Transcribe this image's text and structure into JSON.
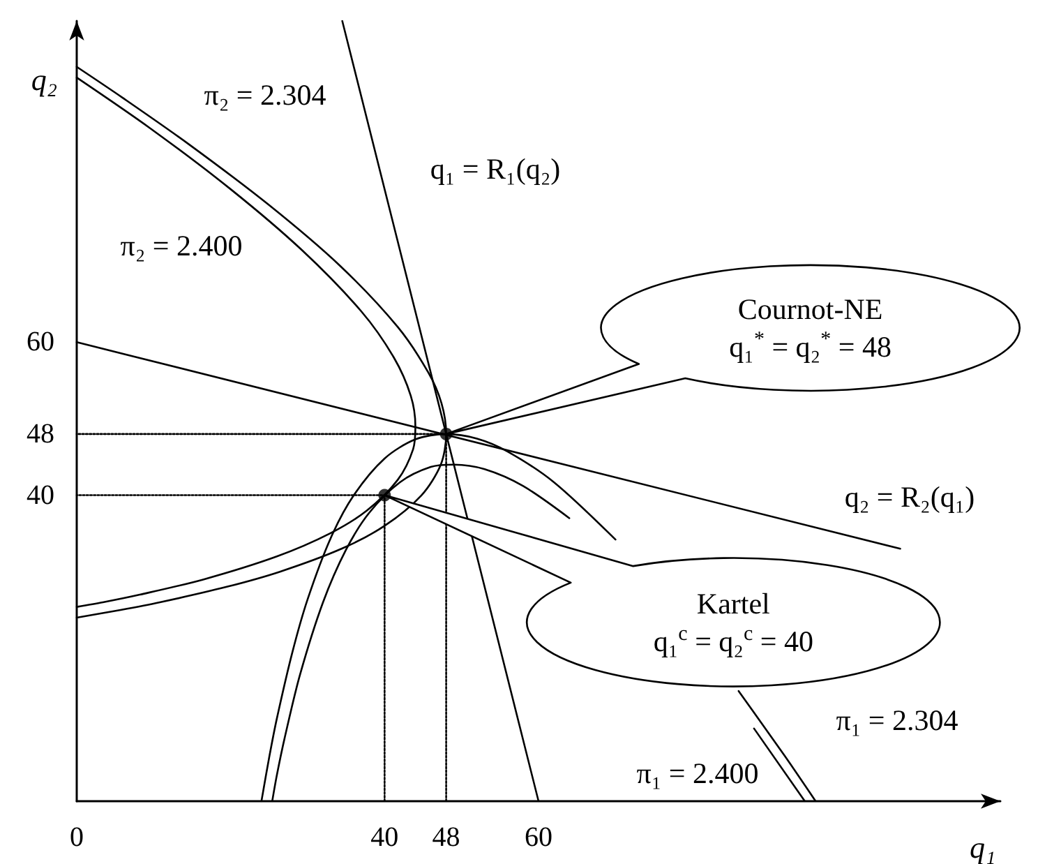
{
  "chart_data": {
    "type": "line",
    "xlabel": "q₁",
    "ylabel": "q₂",
    "xlim": [
      0,
      120
    ],
    "ylim": [
      0,
      102
    ],
    "xticks": [
      0,
      40,
      48,
      60
    ],
    "yticks": [
      40,
      48,
      60
    ],
    "series": [
      {
        "color": "#000000",
        "marker": "none",
        "line_style": "solid",
        "x": [
          0,
          5.7,
          10.8,
          19.4,
          26.4,
          34.4,
          40,
          44.8,
          47.3,
          48,
          47.4,
          45.7,
          41.7,
          34.2,
          24.9,
          14.4,
          5.9,
          0
        ],
        "values": [
          24,
          25,
          26,
          28,
          30,
          33,
          36,
          40,
          44,
          48,
          52,
          56,
          62,
          70,
          78,
          86,
          92,
          96
        ]
      },
      {
        "color": "#000000",
        "marker": "none",
        "line_style": "solid",
        "x": [
          0,
          3.4,
          8.2,
          16.5,
          26,
          32.9,
          37.7,
          41.7,
          43.7,
          44,
          43.4,
          41.2,
          37,
          29.3,
          20,
          9.5,
          0
        ],
        "values": [
          25.4,
          26,
          27,
          29,
          32,
          35,
          38,
          42,
          46,
          49,
          53,
          58,
          64,
          72,
          80,
          88,
          94.6
        ]
      },
      {
        "color": "#000000",
        "marker": "none",
        "line_style": "solid",
        "x": [
          24,
          25,
          26,
          28,
          30,
          33,
          36,
          40,
          44,
          48,
          52,
          56,
          62,
          70,
          78,
          86,
          92,
          96
        ],
        "values": [
          0,
          5.7,
          10.8,
          19.4,
          26.4,
          34.4,
          40,
          44.8,
          47.3,
          48,
          47.4,
          45.7,
          41.7,
          34.2,
          null,
          14.4,
          5.9,
          0
        ]
      },
      {
        "color": "#000000",
        "marker": "none",
        "line_style": "solid",
        "x": [
          25.4,
          26,
          27,
          29,
          32,
          35,
          38,
          42,
          46,
          49,
          53,
          58,
          64,
          72,
          80,
          88,
          94.6
        ],
        "values": [
          0,
          3.4,
          8.2,
          16.5,
          26,
          32.9,
          37.7,
          41.7,
          43.7,
          44,
          43.4,
          41.2,
          37,
          null,
          null,
          9.5,
          0
        ]
      },
      {
        "color": "#000000",
        "marker": "none",
        "line_style": "solid",
        "x": [
          60,
          34.5
        ],
        "values": [
          0,
          102
        ]
      },
      {
        "color": "#000000",
        "marker": "none",
        "line_style": "solid",
        "x": [
          0,
          107
        ],
        "values": [
          60,
          33
        ]
      },
      {
        "color": "#000000",
        "marker": "none",
        "line_style": "dotted",
        "x": [
          48,
          48,
          0
        ],
        "values": [
          0,
          48,
          48
        ]
      },
      {
        "color": "#000000",
        "marker": "none",
        "line_style": "dotted",
        "x": [
          40,
          40,
          0
        ],
        "values": [
          0,
          40,
          40
        ]
      },
      {
        "type": "scatter",
        "color": "#000000",
        "marker": "circle",
        "x": [
          48,
          40
        ],
        "values": [
          48,
          40
        ]
      }
    ],
    "annotations": [
      "π₂ = 2.304",
      "q₁ = R₁(q₂)",
      "π₂ = 2.400",
      "q₂ = R₂(q₁)",
      "π₁ = 2.304",
      "π₁ = 2.400",
      {
        "text": "Cournot-NE\nq₁$^{*}$ = q₂$^{*}$ = 48",
        "x": 48,
        "y": 48
      },
      {
        "text": "Kartel\nq₁$^{c}$ = q₂$^{c}$ = 40",
        "x": 40,
        "y": 40
      }
    ]
  }
}
